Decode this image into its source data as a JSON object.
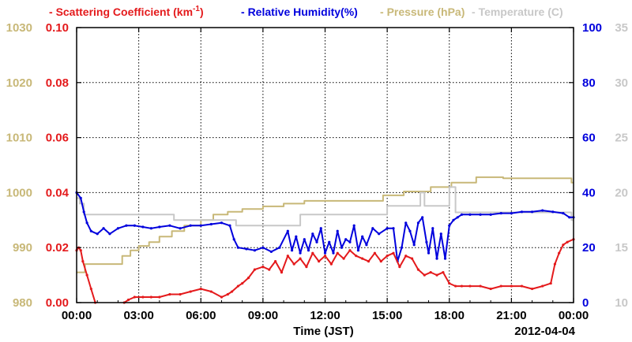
{
  "chart_data": {
    "type": "line",
    "xlabel": "Time (JST)",
    "date_label": "2012-04-04",
    "x_tick_labels": [
      "00:00",
      "03:00",
      "06:00",
      "09:00",
      "12:00",
      "15:00",
      "18:00",
      "21:00",
      "00:00"
    ],
    "x_ticks_hours": [
      0,
      3,
      6,
      9,
      12,
      15,
      18,
      21,
      24
    ],
    "xlim": [
      0,
      24
    ],
    "grid": true,
    "legend_position": "top",
    "axes": {
      "pressure": {
        "label": "Pressure (hPa)",
        "color": "#c8b878",
        "ylim": [
          980,
          1030
        ],
        "ticks": [
          "980",
          "990",
          "1000",
          "1010",
          "1020",
          "1030"
        ],
        "position": "outer-left"
      },
      "scattering": {
        "label": "Scattering Coefficient (km-1)",
        "color": "#e41a1c",
        "ylim": [
          0,
          0.1
        ],
        "ticks": [
          "0.00",
          "0.02",
          "0.04",
          "0.06",
          "0.08",
          "0.10"
        ],
        "position": "inner-left"
      },
      "humidity": {
        "label": "Relative Humidity(%)",
        "color": "#0000dd",
        "ylim": [
          0,
          100
        ],
        "ticks": [
          "0",
          "20",
          "40",
          "60",
          "80",
          "100"
        ],
        "position": "inner-right"
      },
      "temperature": {
        "label": "Temperature (C)",
        "color": "#c8c8c8",
        "ylim": [
          10,
          35
        ],
        "ticks": [
          "10",
          "15",
          "20",
          "25",
          "30",
          "35"
        ],
        "position": "outer-right"
      }
    },
    "legend": [
      {
        "text": "Scattering Coefficient (km",
        "sup": "-1",
        "tail": ")",
        "color": "#e41a1c"
      },
      {
        "text": "Relative Humidity(%)",
        "sup": "",
        "tail": "",
        "color": "#0000dd"
      },
      {
        "text": "Pressure (hPa)",
        "sup": "",
        "tail": "",
        "color": "#c8b878"
      },
      {
        "text": "Temperature (C)",
        "sup": "",
        "tail": "",
        "color": "#c8c8c8"
      }
    ],
    "series": [
      {
        "name": "Pressure (hPa)",
        "axis": "pressure",
        "color": "#c8b878",
        "markers": false,
        "x": [
          0,
          0.4,
          0.4,
          2.2,
          2.2,
          2.6,
          2.6,
          3.0,
          3.0,
          3.5,
          3.5,
          4.0,
          4.0,
          4.6,
          4.6,
          5.2,
          5.2,
          6.0,
          6.0,
          6.6,
          6.6,
          7.3,
          7.3,
          8.0,
          8.0,
          9.0,
          9.0,
          10.0,
          10.0,
          11.0,
          11.0,
          14.8,
          14.8,
          15.8,
          15.8,
          17.1,
          17.1,
          18.1,
          18.1,
          19.3,
          19.3,
          20.6,
          20.6,
          23.9,
          23.9,
          24
        ],
        "y": [
          985.5,
          985.5,
          987,
          987,
          988.5,
          988.5,
          989.5,
          989.5,
          990.3,
          990.3,
          991,
          991,
          992,
          992,
          993,
          993,
          994,
          994,
          995,
          995,
          996,
          996,
          996.5,
          996.5,
          997,
          997,
          997.5,
          997.5,
          998,
          998,
          998.5,
          998.5,
          999.5,
          999.5,
          1000.2,
          1000.2,
          1001,
          1001,
          1001.8,
          1001.8,
          1002.8,
          1002.8,
          1002.6,
          1002.6,
          1001.8,
          1001.8
        ]
      },
      {
        "name": "Temperature (C)",
        "axis": "temperature",
        "color": "#c8c8c8",
        "markers": false,
        "x": [
          0,
          0.15,
          0.15,
          0.35,
          0.35,
          4.7,
          4.7,
          7.7,
          7.7,
          10.8,
          10.8,
          15.0,
          15.0,
          16.6,
          16.6,
          16.8,
          16.8,
          18.0,
          18.0,
          18.3,
          18.3,
          23.9,
          23.9,
          24
        ],
        "y": [
          19.5,
          19.5,
          19,
          19,
          18,
          18,
          17.5,
          17.5,
          17,
          17,
          18,
          18,
          18.8,
          18.8,
          20,
          20,
          18.8,
          18.8,
          20.5,
          20.5,
          18.2,
          18.2,
          17.5,
          17.5
        ]
      },
      {
        "name": "Relative Humidity(%)",
        "axis": "humidity",
        "color": "#0000dd",
        "markers": true,
        "x": [
          0,
          0.2,
          0.35,
          0.5,
          0.7,
          1.0,
          1.3,
          1.6,
          2.0,
          2.4,
          2.8,
          3.2,
          3.6,
          4.0,
          4.5,
          5.0,
          5.5,
          6.0,
          6.5,
          7.0,
          7.4,
          7.6,
          7.8,
          8.2,
          8.6,
          9.0,
          9.4,
          9.8,
          10.2,
          10.4,
          10.6,
          10.8,
          11.0,
          11.2,
          11.4,
          11.6,
          11.8,
          12.0,
          12.2,
          12.4,
          12.6,
          12.8,
          13.0,
          13.2,
          13.4,
          13.6,
          13.8,
          14.0,
          14.3,
          14.6,
          15.0,
          15.3,
          15.5,
          15.7,
          15.9,
          16.1,
          16.3,
          16.5,
          16.7,
          16.9,
          17.0,
          17.2,
          17.4,
          17.6,
          17.8,
          18.0,
          18.2,
          18.4,
          18.6,
          19.0,
          19.5,
          20.0,
          20.5,
          21.0,
          21.5,
          22.0,
          22.5,
          23.0,
          23.5,
          23.8,
          24
        ],
        "y": [
          40,
          38,
          33,
          29,
          26,
          25,
          27,
          25,
          27,
          28,
          28,
          27.5,
          27,
          27.5,
          28,
          27,
          28,
          28,
          28.5,
          29,
          28,
          23,
          20,
          19.5,
          19,
          20,
          18.5,
          20,
          26,
          19,
          24,
          18,
          23,
          19,
          25,
          22,
          27,
          18,
          22,
          18,
          26,
          20,
          23,
          22,
          28,
          19,
          24,
          21,
          27,
          25,
          27,
          27,
          15,
          20,
          29,
          26,
          21,
          29,
          31,
          22,
          18,
          27,
          16,
          25,
          16,
          28,
          30,
          31,
          32,
          32,
          32,
          32,
          32.5,
          32.5,
          33,
          33,
          33.5,
          33,
          32.5,
          31,
          31
        ]
      },
      {
        "name": "Scattering Coefficient (km-1)",
        "axis": "scattering",
        "color": "#e41a1c",
        "markers": true,
        "segments": [
          {
            "x": [
              0,
              0.1,
              0.2,
              0.3,
              0.5,
              0.7,
              0.9
            ],
            "y": [
              0.019,
              0.02,
              0.019,
              0.015,
              0.01,
              0.005,
              0.0
            ]
          },
          {
            "x": [
              2.3,
              2.5,
              2.8,
              3.2,
              3.6,
              4.0,
              4.5,
              5.0,
              5.5,
              6.0,
              6.5,
              7.0,
              7.3,
              7.5,
              7.8,
              8.0,
              8.3,
              8.6,
              9.0,
              9.3,
              9.6,
              9.9,
              10.2,
              10.5,
              10.8,
              11.1,
              11.4,
              11.7,
              12.0,
              12.3,
              12.6,
              12.9,
              13.2,
              13.5,
              13.8,
              14.1,
              14.4,
              14.7,
              15.0,
              15.3,
              15.6,
              15.9,
              16.2,
              16.5,
              16.8,
              17.1,
              17.4,
              17.7,
              18.0,
              18.3,
              18.6,
              19.0,
              19.5,
              20.0,
              20.5,
              21.0,
              21.5,
              22.0,
              22.5,
              22.9,
              23.1,
              23.3,
              23.5,
              23.7,
              24
            ],
            "y": [
              0.0,
              0.001,
              0.002,
              0.002,
              0.002,
              0.002,
              0.003,
              0.003,
              0.004,
              0.005,
              0.004,
              0.002,
              0.003,
              0.004,
              0.006,
              0.007,
              0.009,
              0.012,
              0.013,
              0.012,
              0.015,
              0.011,
              0.017,
              0.014,
              0.016,
              0.013,
              0.018,
              0.015,
              0.017,
              0.014,
              0.018,
              0.016,
              0.019,
              0.017,
              0.016,
              0.015,
              0.018,
              0.015,
              0.017,
              0.018,
              0.013,
              0.017,
              0.016,
              0.012,
              0.01,
              0.011,
              0.01,
              0.011,
              0.007,
              0.006,
              0.006,
              0.006,
              0.006,
              0.005,
              0.006,
              0.006,
              0.006,
              0.005,
              0.006,
              0.007,
              0.014,
              0.018,
              0.021,
              0.022,
              0.023
            ]
          }
        ]
      }
    ]
  }
}
